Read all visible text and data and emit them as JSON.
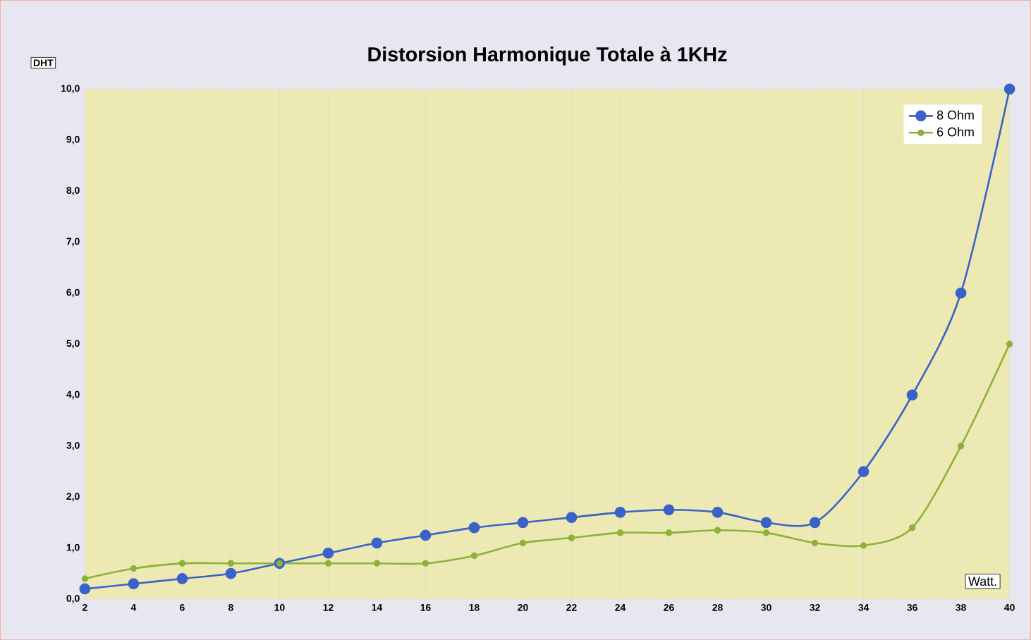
{
  "chart_data": {
    "type": "line",
    "title": "Distorsion Harmonique Totale à 1KHz",
    "xlabel": "Watt.",
    "ylabel": "DHT",
    "x": [
      2,
      4,
      6,
      8,
      10,
      12,
      14,
      16,
      18,
      20,
      22,
      24,
      26,
      28,
      30,
      32,
      34,
      36,
      38,
      40
    ],
    "series": [
      {
        "name": "8 Ohm",
        "color": "#3a62c8",
        "values": [
          0.2,
          0.3,
          0.4,
          0.5,
          0.7,
          0.9,
          1.1,
          1.25,
          1.4,
          1.5,
          1.6,
          1.7,
          1.75,
          1.7,
          1.5,
          1.5,
          2.5,
          4.0,
          6.0,
          10.0
        ]
      },
      {
        "name": "6 Ohm",
        "color": "#8db13a",
        "values": [
          0.4,
          0.6,
          0.7,
          0.7,
          0.7,
          0.7,
          0.7,
          0.7,
          0.85,
          1.1,
          1.2,
          1.3,
          1.3,
          1.35,
          1.3,
          1.1,
          1.05,
          1.4,
          3.0,
          5.0
        ]
      }
    ],
    "xlim": [
      2,
      40
    ],
    "ylim": [
      0,
      10
    ],
    "xticks": [
      2,
      4,
      6,
      8,
      10,
      12,
      14,
      16,
      18,
      20,
      22,
      24,
      26,
      28,
      30,
      32,
      34,
      36,
      38,
      40
    ],
    "yticks": [
      {
        "value": 0,
        "label": "0,0"
      },
      {
        "value": 1,
        "label": "1,0"
      },
      {
        "value": 2,
        "label": "2,0"
      },
      {
        "value": 3,
        "label": "3,0"
      },
      {
        "value": 4,
        "label": "4,0"
      },
      {
        "value": 5,
        "label": "5,0"
      },
      {
        "value": 6,
        "label": "6,0"
      },
      {
        "value": 7,
        "label": "7,0"
      },
      {
        "value": 8,
        "label": "8,0"
      },
      {
        "value": 9,
        "label": "9,0"
      },
      {
        "value": 10,
        "label": "10,0"
      }
    ],
    "grid": true,
    "legend": "top right",
    "marker": "circle",
    "line_style": "solid"
  }
}
